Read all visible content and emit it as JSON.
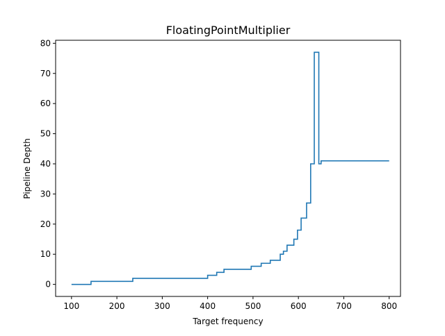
{
  "chart_data": {
    "type": "line",
    "title": "FloatingPointMultiplier",
    "xlabel": "Target frequency",
    "ylabel": "Pipeline Depth",
    "xlim": [
      65,
      825
    ],
    "ylim": [
      -4,
      81
    ],
    "xticks": [
      100,
      200,
      300,
      400,
      500,
      600,
      700,
      800
    ],
    "yticks": [
      0,
      10,
      20,
      30,
      40,
      50,
      60,
      70,
      80
    ],
    "xtick_labels": [
      "100",
      "200",
      "300",
      "400",
      "500",
      "600",
      "700",
      "800"
    ],
    "ytick_labels": [
      "0",
      "10",
      "20",
      "30",
      "40",
      "50",
      "60",
      "70",
      "80"
    ],
    "grid": false,
    "line_color": "#1f77b4",
    "step": "post",
    "series": [
      {
        "x": [
          100,
          143,
          235,
          400,
          420,
          436,
          496,
          518,
          538,
          560,
          567,
          575,
          590,
          598,
          606,
          618,
          627,
          635,
          645,
          650,
          800
        ],
        "y": [
          0,
          1,
          2,
          3,
          4,
          5,
          6,
          7,
          8,
          10,
          11,
          13,
          15,
          18,
          22,
          27,
          40,
          77,
          40,
          41,
          41
        ]
      }
    ]
  }
}
